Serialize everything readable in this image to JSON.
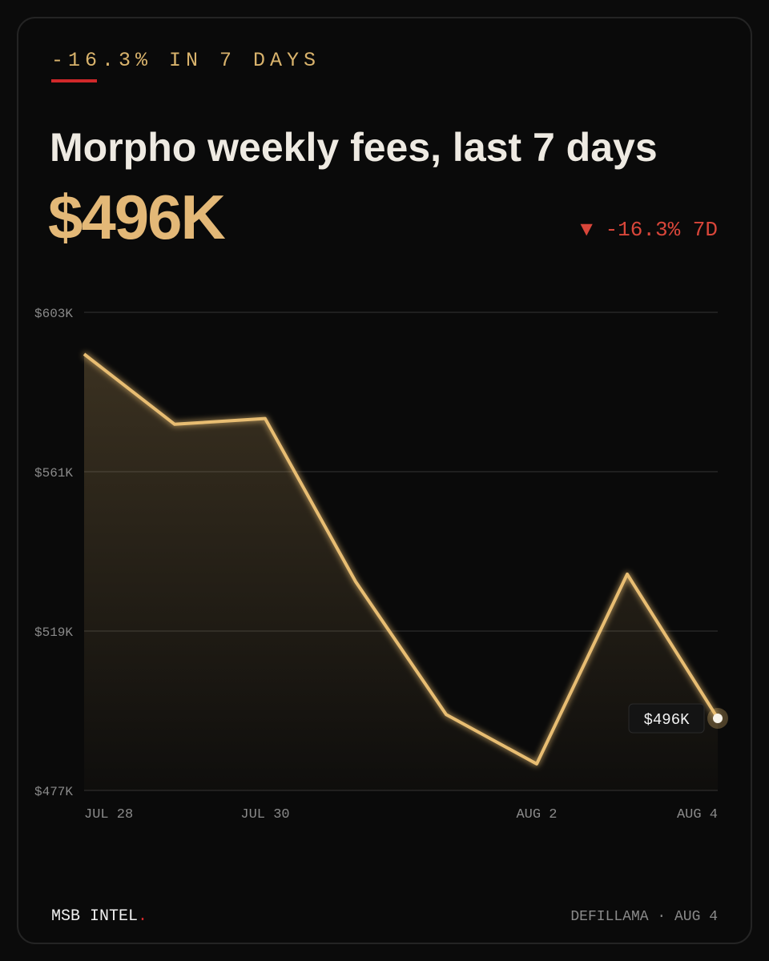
{
  "kicker": "-16.3% IN 7 DAYS",
  "headline_value": "$496K",
  "change": "▼ -16.3% 7D",
  "chart_data": {
    "type": "line",
    "title": "Morpho weekly fees, last 7 days",
    "categories": [
      "JUL 28",
      null,
      "JUL 30",
      null,
      null,
      "AUG 2",
      null,
      "AUG 4"
    ],
    "values": [
      592,
      573.5,
      575,
      532,
      497,
      484,
      534,
      496
    ],
    "value_labels": [
      null,
      null,
      null,
      null,
      null,
      null,
      null,
      "$496K"
    ],
    "color": "#e8bd72",
    "ylim": [
      477,
      603
    ],
    "yticks": [
      {
        "value": 603,
        "label": "$603K"
      },
      {
        "value": 561,
        "label": "$561K"
      },
      {
        "value": 519,
        "label": "$519K"
      },
      {
        "value": 477,
        "label": "$477K"
      }
    ],
    "grid": true
  },
  "footer": {
    "brand": "MSB INTEL",
    "brand_mark": ".",
    "source": "DEFILLAMA · AUG 4"
  }
}
